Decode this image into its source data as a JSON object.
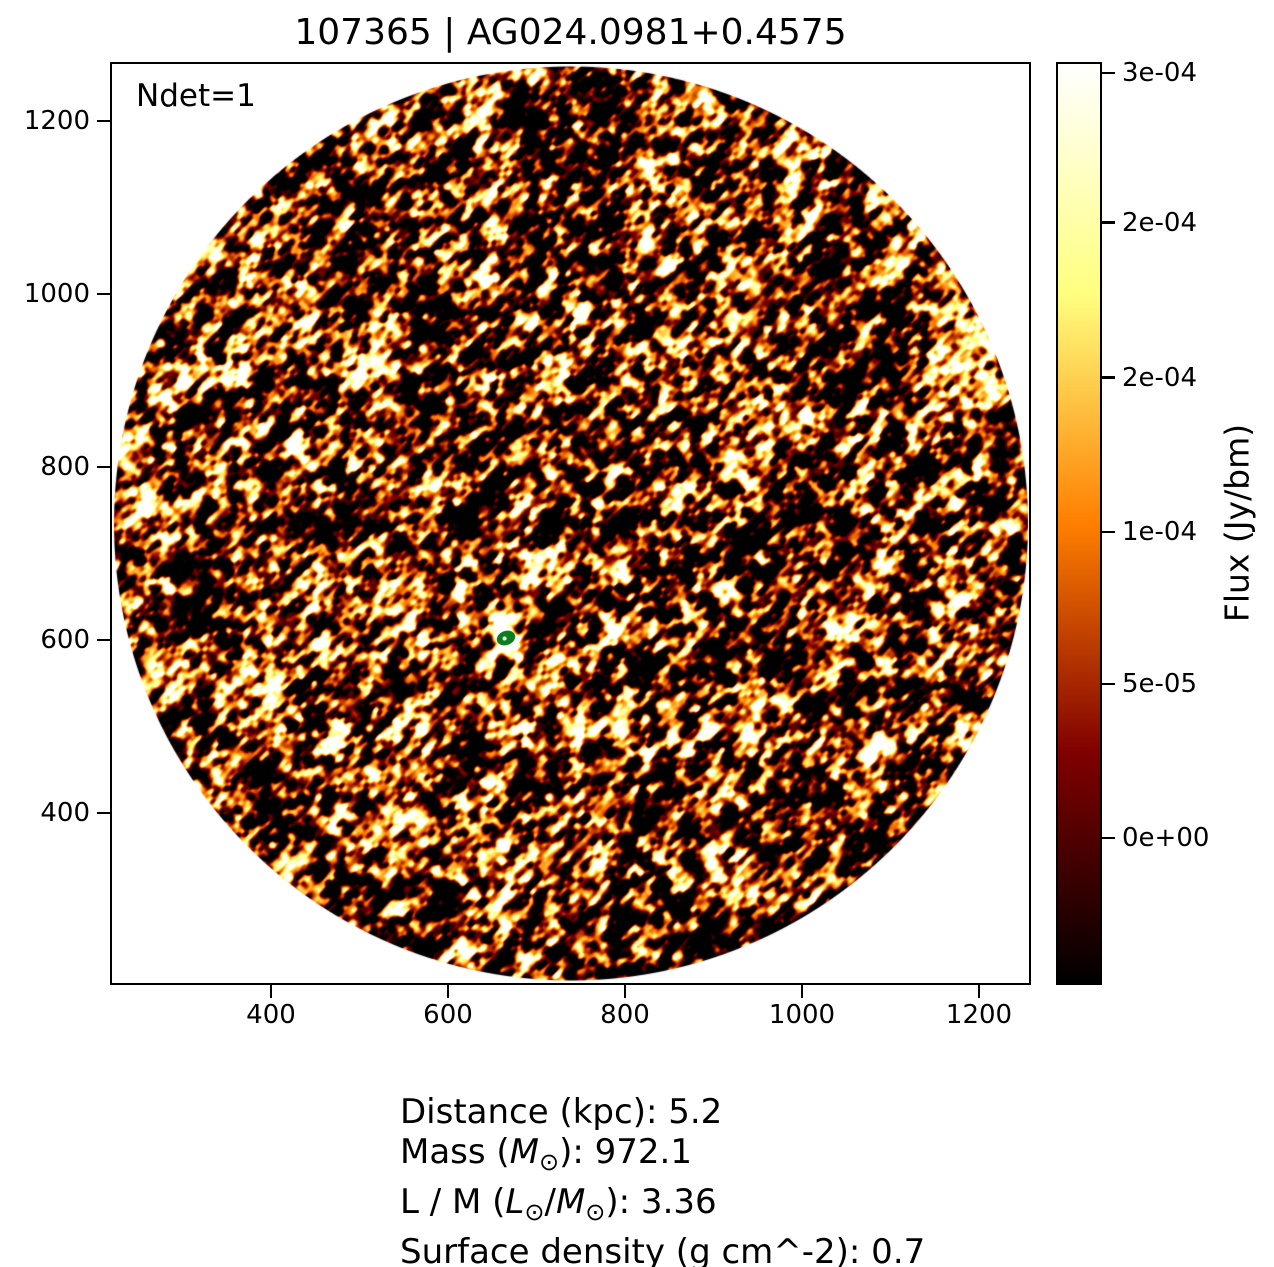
{
  "chart_data": {
    "type": "heatmap",
    "title": "107365 | AG024.0981+0.4575",
    "annotation": "Ndet=1",
    "description": "Circular continuum cutout map shown with a black-red-orange-yellow-white (afmhot) colormap; mottled noise texture over a white background outside the circular field; one detected compact source marked with a green ellipse surrounded by a bright white peak",
    "x_ticks": [
      400,
      600,
      800,
      1000,
      1200
    ],
    "y_ticks": [
      1200,
      1000,
      800,
      600,
      400
    ],
    "x_range": [
      220,
      1256
    ],
    "y_range": [
      203,
      1266
    ],
    "grid": false,
    "colormap": "afmhot",
    "colormap_stops": [
      "#000000",
      "#550000",
      "#aa2b00",
      "#ff8000",
      "#ffd455",
      "#ffffaa",
      "#ffffff"
    ],
    "field_shape": "circle",
    "background_outside_field": "#ffffff",
    "marker": {
      "x": 666,
      "y": 602,
      "shape": "ellipse",
      "color": "#0a7d1e",
      "label": "detected-source"
    },
    "colorbar": {
      "label": "Flux (Jy/bm)",
      "ticks": [
        {
          "label": "3e-04",
          "frac_from_top": 0.012
        },
        {
          "label": "2e-04",
          "frac_from_top": 0.174
        },
        {
          "label": "2e-04",
          "frac_from_top": 0.342
        },
        {
          "label": "1e-04",
          "frac_from_top": 0.509
        },
        {
          "label": "5e-05",
          "frac_from_top": 0.674
        },
        {
          "label": "0e+00",
          "frac_from_top": 0.841
        }
      ]
    }
  },
  "info": {
    "lines": [
      {
        "segments": [
          {
            "t": "Distance (kpc): 5.2"
          }
        ]
      },
      {
        "segments": [
          {
            "t": "Mass ("
          },
          {
            "t": "M",
            "i": true
          },
          {
            "t": "⊙",
            "sub": true
          },
          {
            "t": "): 972.1"
          }
        ]
      },
      {
        "segments": [
          {
            "t": "L / M ("
          },
          {
            "t": "L",
            "i": true
          },
          {
            "t": "⊙",
            "sub": true
          },
          {
            "t": "/"
          },
          {
            "t": "M",
            "i": true
          },
          {
            "t": "⊙",
            "sub": true
          },
          {
            "t": "): 3.36"
          }
        ]
      },
      {
        "segments": [
          {
            "t": "Surface density (g cm^-2): 0.7"
          }
        ]
      }
    ]
  }
}
